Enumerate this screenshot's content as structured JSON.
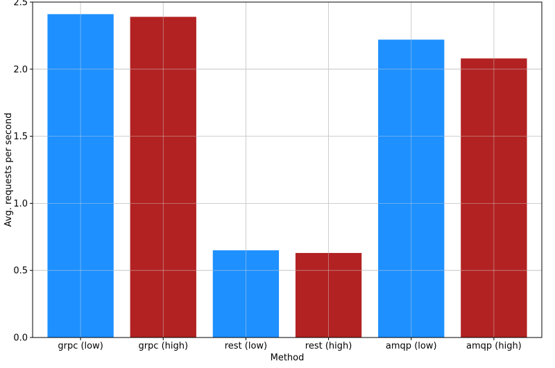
{
  "chart_data": {
    "type": "bar",
    "title": "",
    "xlabel": "Method",
    "ylabel": "Avg. requests per second",
    "categories": [
      "grpc (low)",
      "grpc (high)",
      "rest (low)",
      "rest (high)",
      "amqp (low)",
      "amqp (high)"
    ],
    "values": [
      2.41,
      2.39,
      0.65,
      0.63,
      2.22,
      2.08
    ],
    "bar_colors": [
      "#1e90ff",
      "#b22222",
      "#1e90ff",
      "#b22222",
      "#1e90ff",
      "#b22222"
    ],
    "ylim": [
      0,
      2.5
    ],
    "yticks": [
      0.0,
      0.5,
      1.0,
      1.5,
      2.0,
      2.5
    ],
    "ytick_labels": [
      "0.0",
      "0.5",
      "1.0",
      "1.5",
      "2.0",
      "2.5"
    ],
    "grid": true,
    "grid_color": "#b0b0b0",
    "legend": false
  }
}
